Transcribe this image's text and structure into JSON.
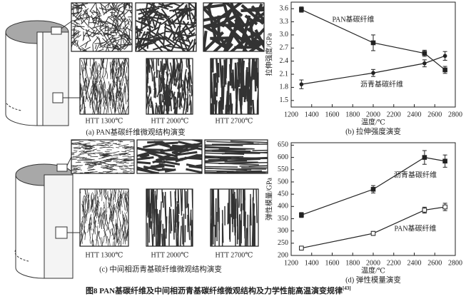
{
  "figure": {
    "panel_a": {
      "labels": [
        "HTT 1300℃",
        "HTT 2000℃",
        "HTT 2700℃"
      ],
      "caption": "(a) PAN基碳纤维微观结构演变"
    },
    "panel_c": {
      "labels": [
        "HTT 1300℃",
        "HTT 2000℃",
        "HTT 2700℃"
      ],
      "caption": "(c) 中间相沥青基碳纤维微观结构演变"
    },
    "caption": "图8  PAN基碳纤维及中间相沥青基碳纤维微观结构及力学性能高温演变规律",
    "ref": "[43]"
  },
  "chart_data": [
    {
      "type": "line",
      "caption": "(b) 拉伸强度演变",
      "xlabel": "温度/℃",
      "ylabel": "拉伸强度/GPa",
      "xlim": [
        1200,
        2800
      ],
      "xticks": [
        1200,
        1400,
        1600,
        1800,
        2000,
        2200,
        2400,
        2600,
        2800
      ],
      "ylim": [
        1.35,
        3.75
      ],
      "yticks": [
        1.5,
        1.8,
        2.1,
        2.4,
        2.7,
        {
          "value": 3,
          "label": "3.0"
        },
        3.3,
        3.6
      ],
      "x": [
        1300,
        2000,
        2500,
        2700
      ],
      "annotations": [
        "PAN基碳纤维",
        "沥青基碳纤维"
      ],
      "series": [
        {
          "name": "PAN基碳纤维",
          "color": "#222222",
          "marker": "square",
          "values": [
            3.58,
            2.82,
            2.58,
            2.2
          ],
          "errors": [
            0.06,
            0.18,
            0.07,
            0.08
          ]
        },
        {
          "name": "沥青基碳纤维",
          "color": "#222222",
          "marker": "circle",
          "values": [
            1.87,
            2.13,
            2.35,
            2.52
          ],
          "errors": [
            0.1,
            0.08,
            0.08,
            0.1
          ]
        }
      ]
    },
    {
      "type": "line",
      "caption": "(d) 弹性模量演变",
      "xlabel": "温度/℃",
      "ylabel": "弹性模量/GPa",
      "xlim": [
        1200,
        2800
      ],
      "xticks": [
        1200,
        1400,
        1600,
        1800,
        2000,
        2200,
        2400,
        2600,
        2800
      ],
      "ylim": [
        200,
        660
      ],
      "yticks": [
        200,
        250,
        300,
        350,
        400,
        450,
        500,
        550,
        600,
        650
      ],
      "x": [
        1300,
        2000,
        2500,
        2700
      ],
      "annotations": [
        "沥青基碳纤维",
        "PAN基碳纤维"
      ],
      "series": [
        {
          "name": "沥青基碳纤维",
          "color": "#222222",
          "marker": "square",
          "values": [
            365,
            470,
            600,
            585
          ],
          "errors": [
            10,
            15,
            28,
            25
          ]
        },
        {
          "name": "PAN基碳纤维",
          "color": "#222222",
          "marker": "open-square",
          "values": [
            230,
            290,
            385,
            398
          ],
          "errors": [
            5,
            8,
            12,
            15
          ]
        }
      ]
    }
  ]
}
